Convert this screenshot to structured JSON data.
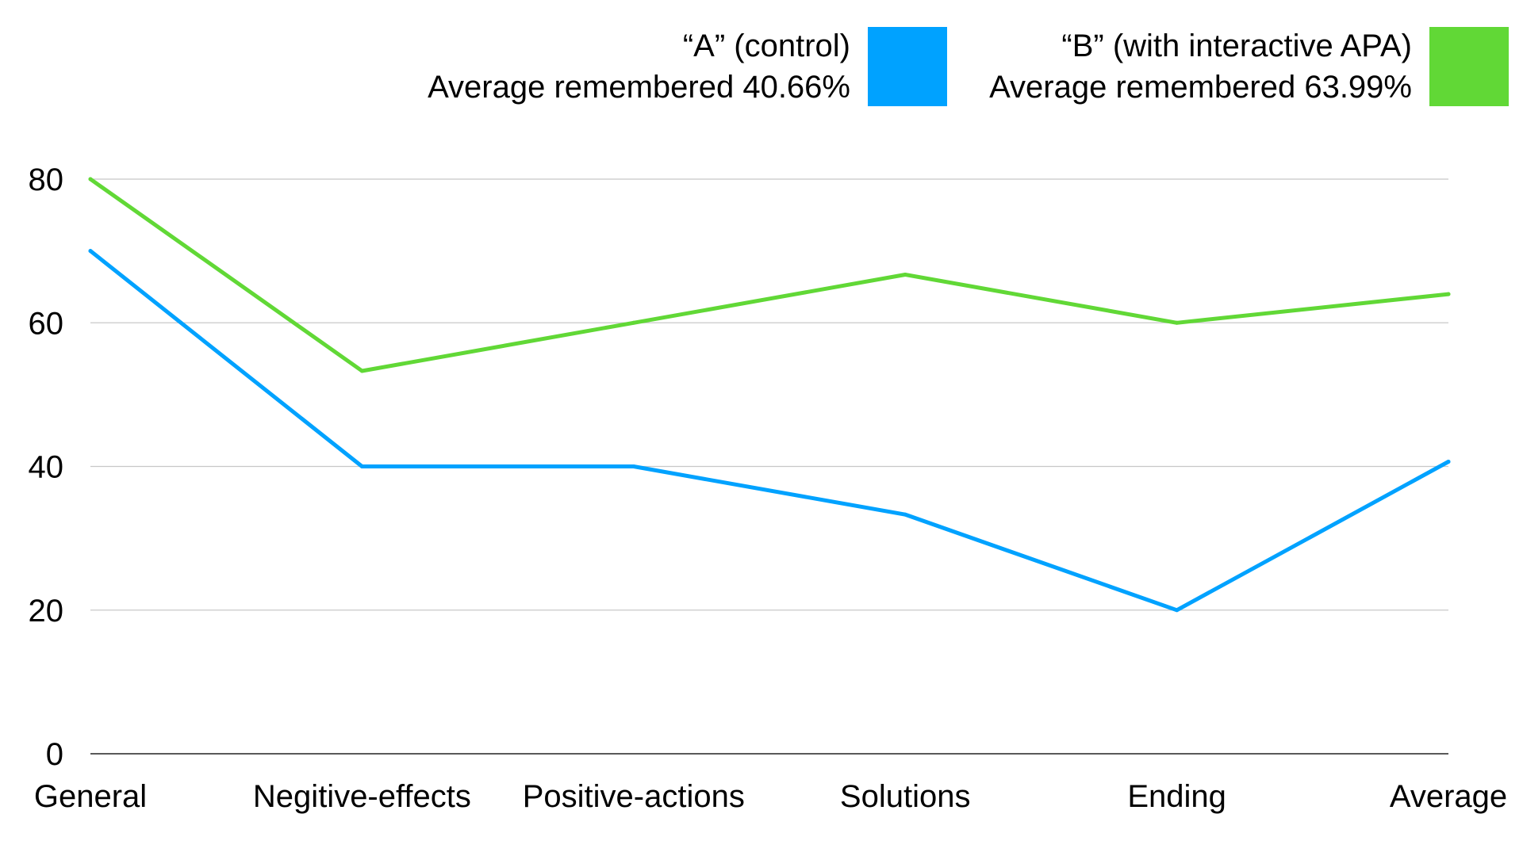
{
  "chart_data": {
    "type": "line",
    "title": "",
    "xlabel": "",
    "ylabel": "",
    "categories": [
      "General",
      "Negitive-effects",
      "Positive-actions",
      "Solutions",
      "Ending",
      "Average"
    ],
    "ylim": [
      0,
      80
    ],
    "yticks": [
      0,
      20,
      40,
      60,
      80
    ],
    "grid": true,
    "legend_position": "top-right",
    "series": [
      {
        "name": "“A” (control)",
        "subtitle": "Average remembered 40.66%",
        "color": "#00A2FF",
        "values": [
          70,
          40,
          40,
          33.3,
          20,
          40.66
        ]
      },
      {
        "name": "“B” (with interactive APA)",
        "subtitle": "Average remembered 63.99%",
        "color": "#61D836",
        "values": [
          80,
          53.3,
          60,
          66.7,
          60,
          63.99
        ]
      }
    ]
  }
}
